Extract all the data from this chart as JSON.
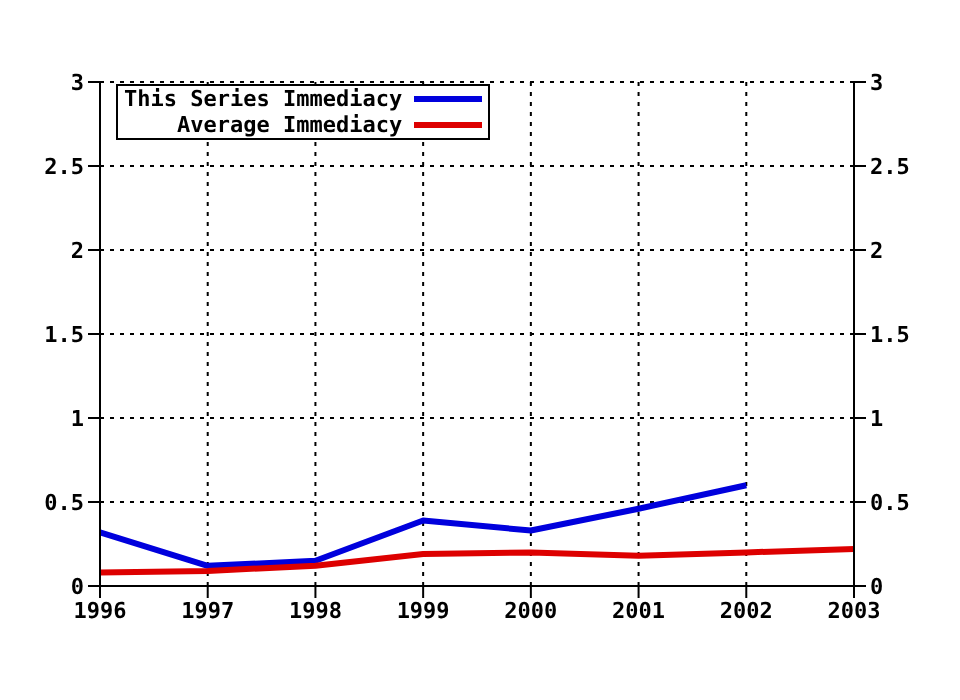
{
  "chart_data": {
    "type": "line",
    "x": [
      1996,
      1997,
      1998,
      1999,
      2000,
      2001,
      2002,
      2003
    ],
    "series": [
      {
        "name": "This Series Immediacy",
        "color": "#0000dd",
        "values": [
          0.32,
          0.12,
          0.15,
          0.39,
          0.33,
          0.46,
          0.6,
          null
        ]
      },
      {
        "name": "Average Immediacy",
        "color": "#dd0000",
        "values": [
          0.08,
          0.09,
          0.12,
          0.19,
          0.2,
          0.18,
          0.2,
          0.22
        ]
      }
    ],
    "xlim": [
      1996,
      2003
    ],
    "xticks": [
      1996,
      1997,
      1998,
      1999,
      2000,
      2001,
      2002,
      2003
    ],
    "ylim": [
      0,
      3
    ],
    "yticks": [
      0,
      0.5,
      1,
      1.5,
      2,
      2.5,
      3
    ],
    "y2lim": [
      0,
      3
    ],
    "y2ticks": [
      0,
      0.5,
      1,
      1.5,
      2,
      2.5,
      3
    ],
    "grid": true,
    "legend": "top left",
    "marker": "none",
    "line_style": "solid"
  }
}
